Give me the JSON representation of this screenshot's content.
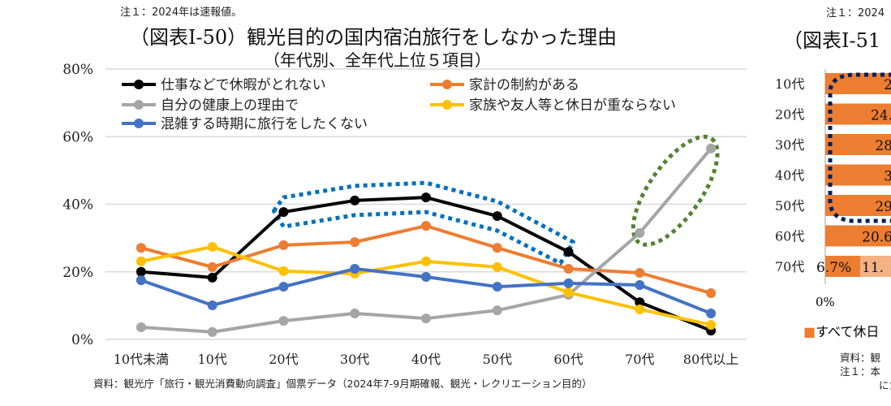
{
  "note_top": "注１：2024年は速報値。",
  "title": "（図表Ⅰ-50）観光目的の国内宿泊旅行をしなかった理由",
  "subtitle": "（年代別、全年代上位５項目）",
  "source": "資料：観光庁「旅行・観光消費動向調査」個票データ（2024年7-9月期確報、観光・レクリエーション目的）",
  "chart_data": {
    "type": "line",
    "title": "（図表Ⅰ-50）観光目的の国内宿泊旅行をしなかった理由",
    "subtitle": "（年代別、全年代上位５項目）",
    "categories": [
      "10代未満",
      "10代",
      "20代",
      "30代",
      "40代",
      "50代",
      "60代",
      "70代",
      "80代以上"
    ],
    "ylim": [
      0,
      80
    ],
    "yticks": [
      "0%",
      "20%",
      "40%",
      "60%",
      "80%"
    ],
    "grid": true,
    "legend_placement": "top-left",
    "series": [
      {
        "name": "仕事などで休暇がとれない",
        "color": "#000000",
        "values": [
          20.0,
          18.3,
          37.7,
          41.1,
          42.0,
          36.5,
          25.9,
          11.0,
          2.6
        ]
      },
      {
        "name": "家計の制約がある",
        "color": "#ED7D31",
        "values": [
          27.1,
          21.4,
          27.9,
          28.8,
          33.6,
          27.1,
          20.9,
          19.7,
          13.7
        ]
      },
      {
        "name": "自分の健康上の理由で",
        "color": "#A5A5A5",
        "values": [
          3.6,
          2.2,
          5.5,
          7.7,
          6.2,
          8.6,
          13.2,
          31.5,
          56.5
        ]
      },
      {
        "name": "家族や友人等と休日が重ならない",
        "color": "#FFC000",
        "values": [
          23.1,
          27.4,
          20.2,
          19.5,
          23.1,
          21.4,
          13.9,
          8.9,
          4.3
        ]
      },
      {
        "name": "混雑する時期に旅行をしたくない",
        "color": "#4472C4",
        "values": [
          17.5,
          10.1,
          15.6,
          20.9,
          18.5,
          15.6,
          16.6,
          16.1,
          7.7
        ]
      }
    ],
    "annotations": [
      {
        "type": "dotted-ellipse",
        "color": "#0070C0",
        "around": "仕事などで休暇がとれない 20代-60代"
      },
      {
        "type": "dotted-ellipse",
        "color": "#548235",
        "around": "自分の健康上の理由で 70代-80代以上"
      }
    ]
  },
  "right_panel": {
    "note_top": "注１：2024",
    "title": "（図表Ⅰ-51",
    "rows": [
      {
        "label": "10代",
        "value": "2"
      },
      {
        "label": "20代",
        "value": "24."
      },
      {
        "label": "30代",
        "value": "28"
      },
      {
        "label": "40代",
        "value": "3"
      },
      {
        "label": "50代",
        "value": "29"
      },
      {
        "label": "60代",
        "value": "20.6"
      },
      {
        "label": "70代",
        "value": "6.7%",
        "value2": "11."
      }
    ],
    "axis_zero": "0%",
    "legend": "すべて休日",
    "source1": "資料：観",
    "source2": "注１：本",
    "source3": "にカ",
    "bar_color": "#ED7D31",
    "bar_color_light": "#F4B183"
  }
}
